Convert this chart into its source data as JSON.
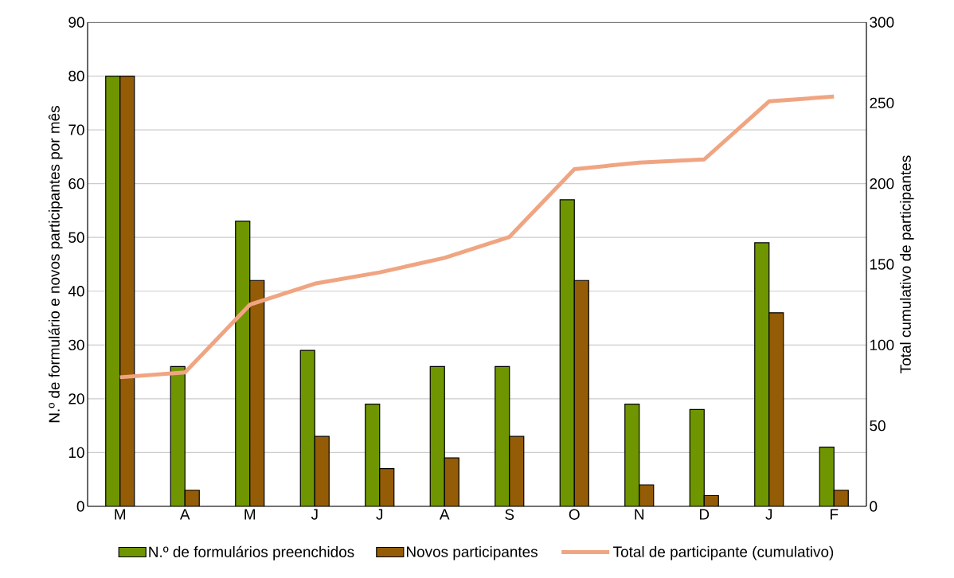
{
  "chart_data": {
    "type": "bar",
    "categories": [
      "M",
      "A",
      "M",
      "J",
      "J",
      "A",
      "S",
      "O",
      "N",
      "D",
      "J",
      "F"
    ],
    "ylabel": "N.º de formulário e novos participantes por mês",
    "y2label": "Total cumulativo de participantes",
    "ylim": [
      0,
      90
    ],
    "yticks": [
      0,
      10,
      20,
      30,
      40,
      50,
      60,
      70,
      80,
      90
    ],
    "y2lim": [
      0,
      300
    ],
    "y2ticks": [
      0,
      50,
      100,
      150,
      200,
      250,
      300
    ],
    "grid": "y",
    "legend": "bottom",
    "series": [
      {
        "name": "N.º de formulários preenchidos",
        "color": "#6f9600",
        "values": [
          80,
          26,
          53,
          29,
          19,
          26,
          26,
          57,
          19,
          18,
          49,
          11
        ]
      },
      {
        "name": "Novos participantes",
        "color": "#945c06",
        "values": [
          80,
          3,
          42,
          13,
          7,
          9,
          13,
          42,
          4,
          2,
          36,
          3
        ]
      },
      {
        "name": "Total de participante (cumulativo)",
        "color": "#f0a582",
        "type": "line",
        "axis": "y2",
        "values": [
          80,
          83,
          125,
          138,
          145,
          154,
          167,
          209,
          213,
          215,
          251,
          254
        ]
      }
    ]
  }
}
